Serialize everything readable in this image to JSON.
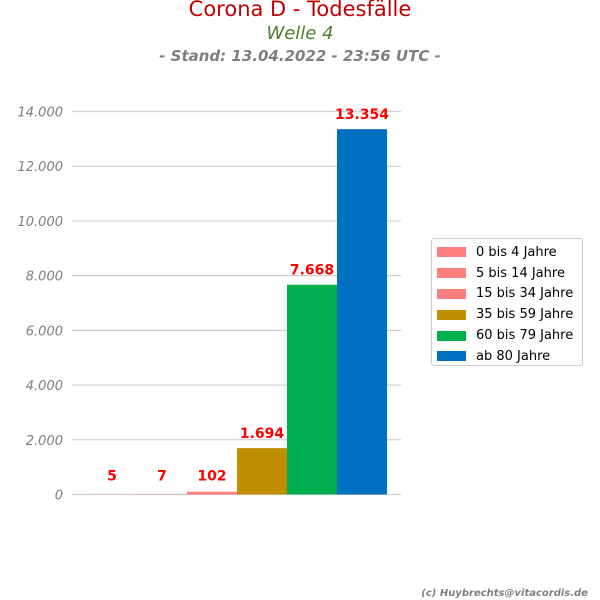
{
  "header": {
    "title": "Corona D - Todesfälle",
    "subtitle": "Welle 4",
    "stand": "- Stand: 13.04.2022 - 23:56 UTC -"
  },
  "footer": {
    "credit": "(c) Huybrechts@vitacordis.de"
  },
  "colors": {
    "title": "#c00000",
    "subtitle": "#4f7f2f",
    "value_label": "#ff0000",
    "grid": "#d0d0d0",
    "tick_text": "#7f7f7f"
  },
  "chart_data": {
    "type": "bar",
    "title": "Corona D - Todesfälle",
    "subtitle": "Welle 4",
    "ylim": [
      0,
      14000
    ],
    "yticks": [
      0,
      2000,
      4000,
      6000,
      8000,
      10000,
      12000,
      14000
    ],
    "ytick_labels": [
      "0",
      "2.000",
      "4.000",
      "6.000",
      "8.000",
      "10.000",
      "12.000",
      "14.000"
    ],
    "grid": true,
    "legend_position": "right",
    "series": [
      {
        "name": "0 bis 4 Jahre",
        "value": 5,
        "label": "5",
        "color": "#ff7f7f"
      },
      {
        "name": "5 bis 14 Jahre",
        "value": 7,
        "label": "7",
        "color": "#ff7f7f"
      },
      {
        "name": "15 bis 34 Jahre",
        "value": 102,
        "label": "102",
        "color": "#ff7f7f"
      },
      {
        "name": "35 bis 59 Jahre",
        "value": 1694,
        "label": "1.694",
        "color": "#bf8f00"
      },
      {
        "name": "60 bis 79 Jahre",
        "value": 7668,
        "label": "7.668",
        "color": "#00b050"
      },
      {
        "name": "ab 80 Jahre",
        "value": 13354,
        "label": "13.354",
        "color": "#0070c0"
      }
    ]
  }
}
